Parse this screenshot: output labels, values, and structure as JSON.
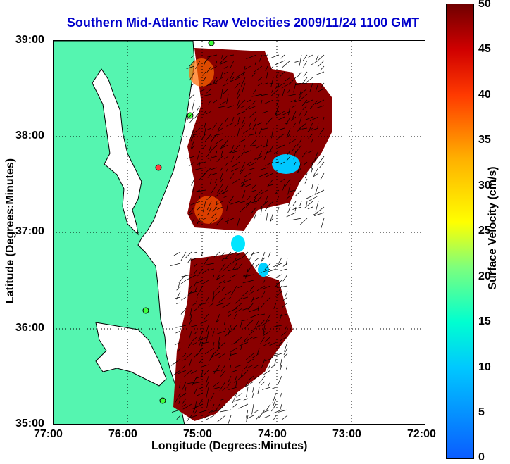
{
  "map": {
    "title": "Southern Mid-Atlantic Raw Velocities 2009/11/24 1100 GMT",
    "xlabel": "Longitude (Degrees:Minutes)",
    "ylabel": "Latitude (Degrees:Minutes)",
    "x_ticks": [
      "77:00",
      "76:00",
      "75:00",
      "74:00",
      "73:00",
      "72:00"
    ],
    "y_ticks": [
      "39:00",
      "38:00",
      "37:00",
      "36:00",
      "35:00"
    ],
    "colors": {
      "land": "#55f5b0",
      "background": "#ffffff",
      "title": "#0000cc"
    }
  },
  "colorbar": {
    "label": "Surface Velocity (cm/s)",
    "ticks": [
      "50",
      "45",
      "40",
      "35",
      "30",
      "25",
      "20",
      "15",
      "10",
      "5",
      "0"
    ],
    "range": [
      0,
      50
    ]
  }
}
